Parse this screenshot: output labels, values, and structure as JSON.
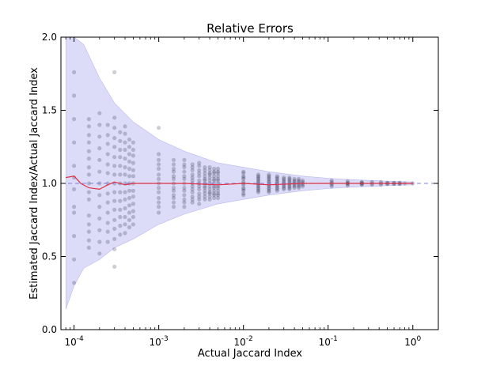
{
  "chart_data": {
    "type": "scatter",
    "title": "Relative Errors",
    "xlabel": "Actual Jaccard Index",
    "ylabel": "Estimated Jaccard Index/Actual Jaccard Index",
    "x_scale": "log",
    "xlim": [
      7e-05,
      2.0
    ],
    "ylim": [
      0.0,
      2.0
    ],
    "x_ticks": [
      {
        "value": 0.0001,
        "base": "10",
        "exp": "-4"
      },
      {
        "value": 0.001,
        "base": "10",
        "exp": "-3"
      },
      {
        "value": 0.01,
        "base": "10",
        "exp": "-2"
      },
      {
        "value": 0.1,
        "base": "10",
        "exp": "-1"
      },
      {
        "value": 1.0,
        "base": "10",
        "exp": "0"
      }
    ],
    "y_ticks": [
      {
        "value": 0.0,
        "label": "0.0"
      },
      {
        "value": 0.5,
        "label": "0.5"
      },
      {
        "value": 1.0,
        "label": "1.0"
      },
      {
        "value": 1.5,
        "label": "1.5"
      },
      {
        "value": 2.0,
        "label": "2.0"
      }
    ],
    "reference_line": {
      "y": 1.0,
      "style": "dashed",
      "color": "#8080e0"
    },
    "band": {
      "color": "#dcdcf8",
      "upper": [
        [
          8e-05,
          2.0
        ],
        [
          0.0001,
          2.0
        ],
        [
          0.00013,
          1.95
        ],
        [
          0.0002,
          1.72
        ],
        [
          0.0003,
          1.55
        ],
        [
          0.0005,
          1.42
        ],
        [
          0.001,
          1.3
        ],
        [
          0.002,
          1.22
        ],
        [
          0.005,
          1.14
        ],
        [
          0.01,
          1.11
        ],
        [
          0.02,
          1.08
        ],
        [
          0.05,
          1.05
        ],
        [
          0.1,
          1.035
        ],
        [
          0.2,
          1.025
        ],
        [
          0.5,
          1.015
        ],
        [
          1.0,
          1.01
        ]
      ],
      "lower": [
        [
          8e-05,
          0.14
        ],
        [
          0.0001,
          0.3
        ],
        [
          0.00013,
          0.42
        ],
        [
          0.0002,
          0.48
        ],
        [
          0.0003,
          0.56
        ],
        [
          0.0005,
          0.62
        ],
        [
          0.001,
          0.72
        ],
        [
          0.002,
          0.79
        ],
        [
          0.005,
          0.86
        ],
        [
          0.01,
          0.89
        ],
        [
          0.02,
          0.92
        ],
        [
          0.05,
          0.95
        ],
        [
          0.1,
          0.965
        ],
        [
          0.2,
          0.975
        ],
        [
          0.5,
          0.985
        ],
        [
          1.0,
          0.99
        ]
      ]
    },
    "mean_line": {
      "color": "#e03040",
      "points": [
        [
          8e-05,
          1.04
        ],
        [
          0.0001,
          1.05
        ],
        [
          0.00012,
          1.0
        ],
        [
          0.00015,
          0.97
        ],
        [
          0.0002,
          0.96
        ],
        [
          0.00025,
          0.99
        ],
        [
          0.0003,
          1.01
        ],
        [
          0.0004,
          0.99
        ],
        [
          0.0005,
          1.0
        ],
        [
          0.001,
          1.0
        ],
        [
          0.002,
          1.0
        ],
        [
          0.005,
          0.99
        ],
        [
          0.01,
          1.0
        ],
        [
          0.02,
          0.99
        ],
        [
          0.05,
          1.0
        ],
        [
          0.1,
          1.0
        ],
        [
          0.2,
          1.0
        ],
        [
          0.5,
          1.0
        ],
        [
          1.0,
          1.0
        ]
      ]
    },
    "columns": [
      {
        "x": 0.0001,
        "ys": [
          0.32,
          0.48,
          0.64,
          0.8,
          0.96,
          1.12,
          1.28,
          1.44,
          1.6,
          1.76,
          0.84,
          1.04
        ]
      },
      {
        "x": 0.00015,
        "ys": [
          0.56,
          0.67,
          0.78,
          0.89,
          1.0,
          1.11,
          1.22,
          1.33,
          1.44,
          0.61,
          0.72,
          0.94,
          1.06,
          1.17,
          1.28,
          1.39
        ]
      },
      {
        "x": 0.0002,
        "ys": [
          0.52,
          0.6,
          0.68,
          0.76,
          0.84,
          0.92,
          1.0,
          1.08,
          1.16,
          1.24,
          1.32,
          1.4,
          1.48
        ]
      },
      {
        "x": 0.00025,
        "ys": [
          0.6,
          0.67,
          0.73,
          0.8,
          0.87,
          0.93,
          1.0,
          1.07,
          1.13,
          1.2,
          1.27,
          1.33,
          1.4
        ]
      },
      {
        "x": 0.0003,
        "ys": [
          0.43,
          0.55,
          0.62,
          0.69,
          0.75,
          0.82,
          0.88,
          0.94,
          1.0,
          1.06,
          1.12,
          1.18,
          1.25,
          1.31,
          1.38,
          1.45,
          1.76
        ]
      },
      {
        "x": 0.00035,
        "ys": [
          0.65,
          0.71,
          0.77,
          0.82,
          0.88,
          0.94,
          1.0,
          1.06,
          1.12,
          1.18,
          1.23,
          1.29,
          1.35
        ]
      },
      {
        "x": 0.0004,
        "ys": [
          0.66,
          0.72,
          0.77,
          0.83,
          0.89,
          0.94,
          1.0,
          1.06,
          1.11,
          1.17,
          1.23,
          1.28,
          1.34,
          1.39
        ]
      },
      {
        "x": 0.00045,
        "ys": [
          0.7,
          0.75,
          0.8,
          0.85,
          0.9,
          0.95,
          1.0,
          1.05,
          1.1,
          1.15,
          1.2,
          1.25,
          1.3
        ]
      },
      {
        "x": 0.0005,
        "ys": [
          0.72,
          0.77,
          0.81,
          0.86,
          0.91,
          0.95,
          1.0,
          1.05,
          1.09,
          1.14,
          1.19,
          1.23,
          1.28
        ]
      },
      {
        "x": 0.001,
        "ys": [
          0.8,
          0.84,
          0.87,
          0.9,
          0.94,
          0.97,
          1.0,
          1.03,
          1.06,
          1.1,
          1.13,
          1.16,
          1.2,
          1.38
        ]
      },
      {
        "x": 0.0015,
        "ys": [
          0.84,
          0.87,
          0.9,
          0.92,
          0.95,
          0.97,
          1.0,
          1.03,
          1.05,
          1.08,
          1.1,
          1.13,
          1.16
        ]
      },
      {
        "x": 0.002,
        "ys": [
          0.84,
          0.87,
          0.89,
          0.92,
          0.95,
          0.97,
          1.0,
          1.03,
          1.05,
          1.08,
          1.11,
          1.13,
          1.16
        ]
      },
      {
        "x": 0.0025,
        "ys": [
          0.87,
          0.89,
          0.91,
          0.94,
          0.96,
          0.98,
          1.0,
          1.02,
          1.04,
          1.06,
          1.09,
          1.11,
          1.13
        ]
      },
      {
        "x": 0.003,
        "ys": [
          0.86,
          0.89,
          0.91,
          0.93,
          0.96,
          0.98,
          1.0,
          1.02,
          1.05,
          1.07,
          1.09,
          1.12,
          1.14
        ]
      },
      {
        "x": 0.0035,
        "ys": [
          0.89,
          0.91,
          0.93,
          0.95,
          0.97,
          0.98,
          1.0,
          1.02,
          1.03,
          1.05,
          1.07,
          1.09,
          1.11
        ]
      },
      {
        "x": 0.004,
        "ys": [
          0.89,
          0.91,
          0.93,
          0.94,
          0.96,
          0.98,
          1.0,
          1.02,
          1.04,
          1.06,
          1.07,
          1.09,
          1.11
        ]
      },
      {
        "x": 0.0045,
        "ys": [
          0.9,
          0.92,
          0.93,
          0.95,
          0.97,
          0.98,
          1.0,
          1.02,
          1.03,
          1.05,
          1.07,
          1.08,
          1.1
        ]
      },
      {
        "x": 0.005,
        "ys": [
          0.9,
          0.92,
          0.93,
          0.95,
          0.97,
          0.98,
          1.0,
          1.02,
          1.03,
          1.05,
          1.07,
          1.08,
          1.1
        ]
      },
      {
        "x": 0.01,
        "ys": [
          0.92,
          0.93,
          0.95,
          0.96,
          0.97,
          0.99,
          1.0,
          1.01,
          1.03,
          1.04,
          1.05,
          1.07,
          1.08
        ]
      },
      {
        "x": 0.015,
        "ys": [
          0.94,
          0.95,
          0.96,
          0.97,
          0.98,
          0.99,
          1.0,
          1.01,
          1.02,
          1.03,
          1.04,
          1.05,
          1.06
        ]
      },
      {
        "x": 0.02,
        "ys": [
          0.94,
          0.95,
          0.96,
          0.97,
          0.98,
          0.99,
          1.0,
          1.01,
          1.02,
          1.03,
          1.04,
          1.05,
          1.06
        ]
      },
      {
        "x": 0.025,
        "ys": [
          0.95,
          0.96,
          0.97,
          0.98,
          0.99,
          1.0,
          1.01,
          1.02,
          1.03,
          1.04,
          1.05
        ]
      },
      {
        "x": 0.03,
        "ys": [
          0.96,
          0.97,
          0.98,
          0.99,
          1.0,
          1.01,
          1.02,
          1.03,
          1.04
        ]
      },
      {
        "x": 0.035,
        "ys": [
          0.96,
          0.97,
          0.98,
          0.99,
          1.0,
          1.01,
          1.02,
          1.03,
          1.04
        ]
      },
      {
        "x": 0.04,
        "ys": [
          0.97,
          0.98,
          0.99,
          1.0,
          1.01,
          1.02,
          1.03
        ]
      },
      {
        "x": 0.045,
        "ys": [
          0.97,
          0.98,
          0.99,
          1.0,
          1.01,
          1.02,
          1.03
        ]
      },
      {
        "x": 0.05,
        "ys": [
          0.98,
          0.99,
          1.0,
          1.01,
          1.02
        ]
      },
      {
        "x": 0.11,
        "ys": [
          0.98,
          0.99,
          1.0,
          1.01,
          1.02
        ]
      },
      {
        "x": 0.17,
        "ys": [
          0.985,
          0.995,
          1.0,
          1.005,
          1.015
        ]
      },
      {
        "x": 0.25,
        "ys": [
          0.99,
          0.995,
          1.0,
          1.005,
          1.01
        ]
      },
      {
        "x": 0.33,
        "ys": [
          0.99,
          1.0,
          1.01
        ]
      },
      {
        "x": 0.42,
        "ys": [
          0.99,
          1.0,
          1.01
        ]
      },
      {
        "x": 0.5,
        "ys": [
          0.995,
          1.0,
          1.005
        ]
      },
      {
        "x": 0.6,
        "ys": [
          0.995,
          1.0,
          1.005
        ]
      },
      {
        "x": 0.7,
        "ys": [
          0.995,
          1.0,
          1.005
        ]
      },
      {
        "x": 0.8,
        "ys": [
          1.0
        ]
      },
      {
        "x": 1.0,
        "ys": [
          1.0
        ]
      }
    ]
  }
}
